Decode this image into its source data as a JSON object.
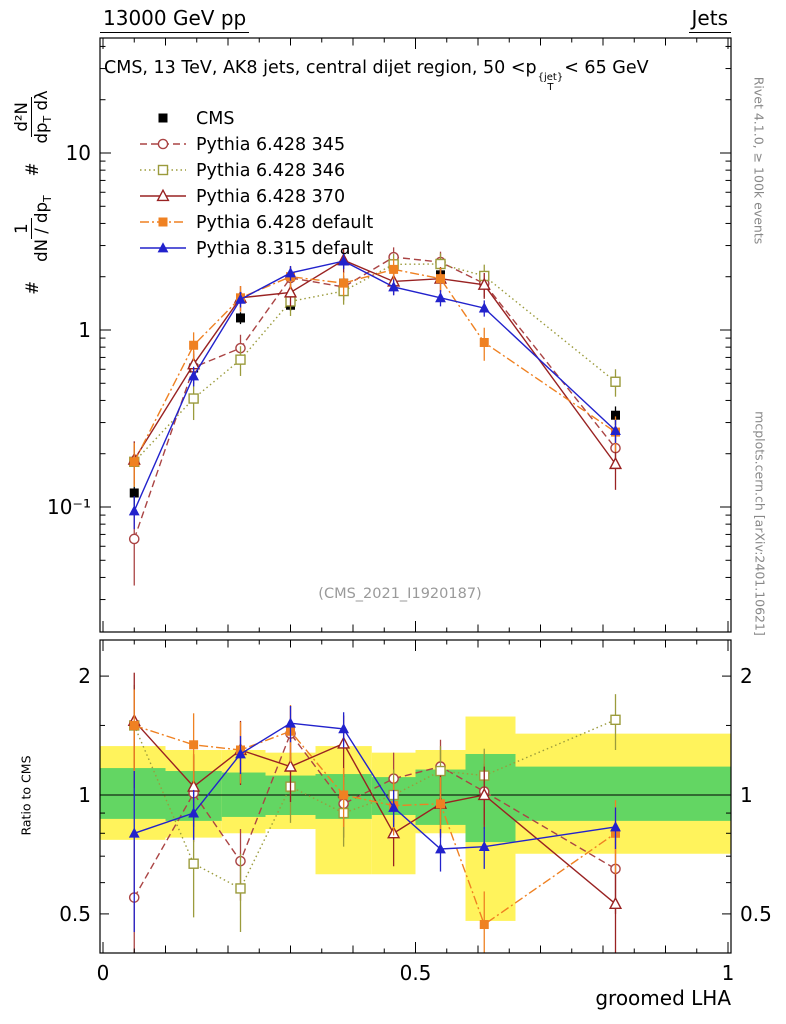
{
  "header": {
    "left": "13000 GeV pp",
    "right": "Jets"
  },
  "title": {
    "a": "CMS, 13 TeV, AK8 jets, central dijet region, 50 <p",
    "sup": "{jet}",
    "sub": "T",
    "b": "< 65 GeV"
  },
  "watermark": "(CMS_2021_I1920187)",
  "side_notes": {
    "top": "Rivet 4.1.0, ≥ 100k events",
    "bottom": "mcplots.cern.ch [arXiv:2401.10621]"
  },
  "axes": {
    "xlabel": "groomed LHA",
    "ratio_ylabel": "Ratio to CMS",
    "ylabel_main": {
      "hash1": "#",
      "frac1_num": "1",
      "frac1_den_a": "dN / dp",
      "frac1_den_sub": "T",
      "hash2": "#",
      "frac2_num": "d²N",
      "frac2_den_a": "dp",
      "frac2_den_sub": "T",
      "frac2_den_b": " dλ"
    }
  },
  "chart_data": {
    "type": "line",
    "title": "CMS, 13 TeV, AK8 jets, central dijet region, 50 <p_T^{jet}< 65 GeV",
    "xlabel": "groomed LHA",
    "ylabel": "1/(dN/dp_T) d²N/(dp_T dλ)",
    "ratio_ylabel": "Ratio to CMS",
    "x_range": [
      0,
      1
    ],
    "y_scale": "log",
    "y_range_main": [
      0.02,
      45
    ],
    "y_range_ratio": [
      0.4,
      2.47
    ],
    "legend_position": "top-left",
    "x": [
      0.05,
      0.145,
      0.22,
      0.3,
      0.385,
      0.465,
      0.54,
      0.61,
      0.82
    ],
    "x_major_ticks": [
      0,
      0.5,
      1
    ],
    "x_major_labels": [
      "0",
      "0.5",
      "1"
    ],
    "y_major_ticks_main": [
      10,
      1,
      0.1
    ],
    "y_major_labels_main": [
      "10",
      "1",
      "10⁻¹"
    ],
    "y_major_ticks_ratio": [
      2,
      1,
      0.5
    ],
    "y_major_labels_ratio": [
      "2",
      "1",
      "0.5"
    ],
    "band_colors": {
      "yellow": "#fff35c",
      "green": "#63d663"
    },
    "series": [
      {
        "name": "CMS",
        "color": "#000000",
        "marker": "square-filled",
        "line": "none",
        "values": [
          0.12,
          0.61,
          1.17,
          1.38,
          1.84,
          2.35,
          2.05,
          1.8,
          0.33
        ],
        "yerr": [
          0.02,
          0.06,
          0.09,
          0.1,
          0.13,
          0.16,
          0.15,
          0.13,
          0.04
        ]
      },
      {
        "name": "Pythia 6.428 345",
        "color": "#aa4444",
        "marker": "circle-open",
        "line": "dashed",
        "values": [
          0.066,
          0.615,
          0.79,
          1.97,
          1.75,
          2.58,
          2.42,
          1.83,
          0.215
        ],
        "yerr": [
          0.03,
          0.12,
          0.15,
          0.3,
          0.28,
          0.35,
          0.35,
          0.3,
          0.05
        ],
        "ratio": [
          0.55,
          1.01,
          0.68,
          1.43,
          0.95,
          1.1,
          1.18,
          1.02,
          0.65
        ],
        "ratio_err": [
          0.22,
          0.25,
          0.14,
          0.25,
          0.17,
          0.18,
          0.2,
          0.18,
          0.15
        ]
      },
      {
        "name": "Pythia 6.428 346",
        "color": "#9b9b3c",
        "marker": "square-open",
        "line": "dotted",
        "values": [
          0.18,
          0.41,
          0.68,
          1.45,
          1.66,
          2.35,
          2.36,
          2.02,
          0.51
        ],
        "yerr": [
          0.05,
          0.1,
          0.13,
          0.25,
          0.27,
          0.35,
          0.35,
          0.32,
          0.09
        ],
        "ratio": [
          1.5,
          0.67,
          0.58,
          1.05,
          0.9,
          1.0,
          1.15,
          1.12,
          1.55
        ],
        "ratio_err": [
          0.4,
          0.18,
          0.13,
          0.2,
          0.16,
          0.16,
          0.18,
          0.19,
          0.25
        ]
      },
      {
        "name": "Pythia 6.428 370",
        "color": "#992222",
        "marker": "triangle-open",
        "line": "solid",
        "values": [
          0.185,
          0.64,
          1.52,
          1.63,
          2.48,
          1.88,
          1.95,
          1.8,
          0.175
        ],
        "yerr": [
          0.05,
          0.12,
          0.25,
          0.27,
          0.38,
          0.3,
          0.32,
          0.3,
          0.05
        ],
        "ratio": [
          1.54,
          1.05,
          1.3,
          1.18,
          1.35,
          0.8,
          0.95,
          1.0,
          0.53
        ],
        "ratio_err": [
          0.5,
          0.22,
          0.24,
          0.22,
          0.24,
          0.14,
          0.17,
          0.18,
          0.14
        ]
      },
      {
        "name": "Pythia 6.428 default",
        "color": "#ef8122",
        "marker": "square-filled",
        "line": "dashdot",
        "values": [
          0.18,
          0.82,
          1.52,
          2.0,
          1.84,
          2.2,
          1.95,
          0.85,
          0.265
        ],
        "yerr": [
          0.05,
          0.15,
          0.25,
          0.3,
          0.28,
          0.33,
          0.3,
          0.18,
          0.06
        ],
        "ratio": [
          1.5,
          1.34,
          1.3,
          1.45,
          1.0,
          0.94,
          0.95,
          0.47,
          0.8
        ],
        "ratio_err": [
          0.35,
          0.27,
          0.23,
          0.24,
          0.17,
          0.15,
          0.16,
          0.1,
          0.17
        ]
      },
      {
        "name": "Pythia 8.315 default",
        "color": "#2222cc",
        "marker": "triangle-filled",
        "line": "solid",
        "values": [
          0.095,
          0.55,
          1.49,
          2.1,
          2.45,
          1.75,
          1.52,
          1.33,
          0.27
        ],
        "yerr": [
          0.02,
          0.07,
          0.15,
          0.2,
          0.24,
          0.18,
          0.16,
          0.14,
          0.04
        ],
        "ratio": [
          0.8,
          0.9,
          1.27,
          1.52,
          1.47,
          0.93,
          0.73,
          0.74,
          0.83
        ],
        "ratio_err": [
          0.35,
          0.13,
          0.14,
          0.16,
          0.15,
          0.1,
          0.09,
          0.09,
          0.1
        ]
      }
    ],
    "ratio_bands": {
      "edges": [
        0,
        0.1,
        0.19,
        0.26,
        0.34,
        0.43,
        0.5,
        0.58,
        0.66,
        1.0
      ],
      "yellow": [
        [
          0.77,
          1.33
        ],
        [
          0.78,
          1.3
        ],
        [
          0.8,
          1.3
        ],
        [
          0.82,
          1.28
        ],
        [
          0.63,
          1.33
        ],
        [
          0.63,
          1.28
        ],
        [
          0.8,
          1.3
        ],
        [
          0.48,
          1.58
        ],
        [
          0.71,
          1.43
        ]
      ],
      "green": [
        [
          0.87,
          1.17
        ],
        [
          0.86,
          1.15
        ],
        [
          0.88,
          1.14
        ],
        [
          0.89,
          1.12
        ],
        [
          0.87,
          1.13
        ],
        [
          0.89,
          1.11
        ],
        [
          0.84,
          1.16
        ],
        [
          0.76,
          1.27
        ],
        [
          0.86,
          1.18
        ]
      ]
    }
  }
}
